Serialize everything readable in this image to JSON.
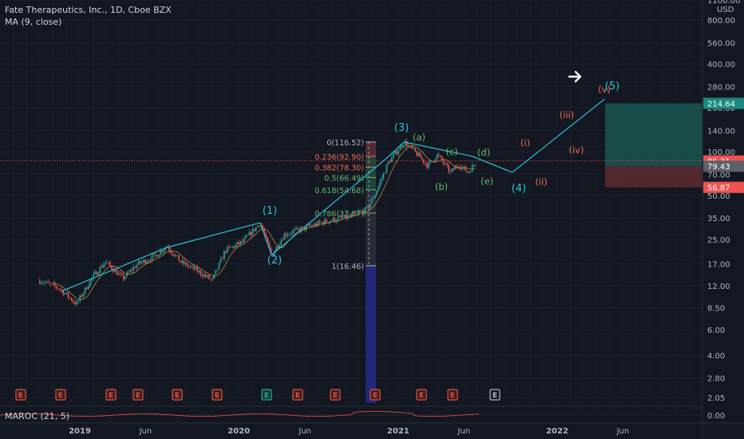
{
  "header": {
    "title": "Fate Therapeutics, Inc., 1D, Cboe BZX",
    "indicator": "MA (9, close)"
  },
  "oscillator": {
    "label": "MAROC (21, 5)",
    "axis_label": "0.00"
  },
  "colors": {
    "background": "#131722",
    "up": "#26a69a",
    "down": "#ef5350",
    "wave_line": "#26c6da",
    "fib_red": "#f06d4e",
    "fib_green": "#66bb6a",
    "fib_gray": "#b2b5be",
    "target_green": "#1b5e57",
    "stop_red": "#5c2b30",
    "earnings": "#e0513f",
    "earnings_future": "#b2b5be"
  },
  "chart_data": {
    "type": "candlestick",
    "yscale": "log",
    "x_labels": [
      "2019",
      "Jun",
      "2020",
      "Jun",
      "2021",
      "Jun",
      "2022",
      "Jun"
    ],
    "y_ticks": [
      1100.0,
      800.0,
      560.0,
      400.0,
      280.0,
      200.0,
      140.0,
      100.0,
      70.0,
      50.0,
      35.0,
      25.0,
      17.0,
      12.0,
      8.5,
      6.0,
      4.0,
      2.8,
      2.05
    ],
    "y_ticks_text": [
      "1100.00",
      "800.00",
      "560.00",
      "400.00",
      "280.00",
      "200.00",
      "140.00",
      "100.00",
      "70.00",
      "50.00",
      "35.00",
      "25.00",
      "17.00",
      "12.00",
      "8.50",
      "6.00",
      "4.00",
      "2.80",
      "2.05"
    ],
    "currency": "USD",
    "price_path": [
      {
        "date": "2018-10-01",
        "price": 13.0
      },
      {
        "date": "2018-11-15",
        "price": 11.5
      },
      {
        "date": "2018-12-24",
        "price": 9.0
      },
      {
        "date": "2019-02-01",
        "price": 14.0
      },
      {
        "date": "2019-03-01",
        "price": 17.5
      },
      {
        "date": "2019-04-10",
        "price": 13.5
      },
      {
        "date": "2019-05-15",
        "price": 17.0
      },
      {
        "date": "2019-06-20",
        "price": 19.0
      },
      {
        "date": "2019-07-20",
        "price": 22.5
      },
      {
        "date": "2019-08-20",
        "price": 17.5
      },
      {
        "date": "2019-10-01",
        "price": 15.0
      },
      {
        "date": "2019-11-01",
        "price": 13.0
      },
      {
        "date": "2019-12-01",
        "price": 21.0
      },
      {
        "date": "2020-01-10",
        "price": 24.0
      },
      {
        "date": "2020-02-19",
        "price": 32.5
      },
      {
        "date": "2020-03-16",
        "price": 19.5
      },
      {
        "date": "2020-04-15",
        "price": 27.0
      },
      {
        "date": "2020-06-01",
        "price": 30.0
      },
      {
        "date": "2020-07-15",
        "price": 33.0
      },
      {
        "date": "2020-09-15",
        "price": 36.0
      },
      {
        "date": "2020-10-20",
        "price": 40.0
      },
      {
        "date": "2020-11-10",
        "price": 52.0
      },
      {
        "date": "2020-12-10",
        "price": 85.0
      },
      {
        "date": "2021-01-15",
        "price": 116.5
      },
      {
        "date": "2021-02-15",
        "price": 95.0
      },
      {
        "date": "2021-03-10",
        "price": 80.0
      },
      {
        "date": "2021-04-01",
        "price": 95.0
      },
      {
        "date": "2021-05-01",
        "price": 72.0
      },
      {
        "date": "2021-05-20",
        "price": 82.0
      },
      {
        "date": "2021-06-10",
        "price": 72.0
      },
      {
        "date": "2021-07-01",
        "price": 86.3
      }
    ],
    "elliott_wave": [
      {
        "label": "(1)",
        "date": "2020-02-19",
        "price": 32.5
      },
      {
        "label": "(2)",
        "date": "2020-03-16",
        "price": 19.5
      },
      {
        "label": "(3)",
        "date": "2021-01-15",
        "price": 116.5
      },
      {
        "label": "(4)",
        "date": "2021-09-20",
        "price": 72.0
      },
      {
        "label": "(5)",
        "date": "2022-04-20",
        "price": 230.0
      }
    ],
    "corrective_labels": [
      "(a)",
      "(b)",
      "(c)",
      "(d)",
      "(e)"
    ],
    "impulse_labels": [
      "(i)",
      "(ii)",
      "(iii)",
      "(iv)",
      "(v)"
    ],
    "fibonacci": {
      "levels": [
        {
          "label": "0(116.52)",
          "price": 116.52
        },
        {
          "label": "0.236(92.90)",
          "price": 92.9
        },
        {
          "label": "0.382(78.30)",
          "price": 78.3
        },
        {
          "label": "0.5(66.49)",
          "price": 66.49
        },
        {
          "label": "0.618(54.68)",
          "price": 54.68
        },
        {
          "label": "0.786(37.87)",
          "price": 37.87
        },
        {
          "label": "1(16.46)",
          "price": 16.46
        }
      ]
    },
    "position": {
      "target": 214.64,
      "entry": 79.43,
      "stop": 56.87,
      "last_price": 86.31,
      "target_text": "214.64",
      "entry_text": "79.43",
      "stop_text": "56.87",
      "last_price_text": "86.31"
    },
    "earnings_markers": [
      "E",
      "E",
      "E",
      "E",
      "E",
      "E",
      "E",
      "E",
      "E",
      "E",
      "E",
      "E",
      "E"
    ]
  }
}
